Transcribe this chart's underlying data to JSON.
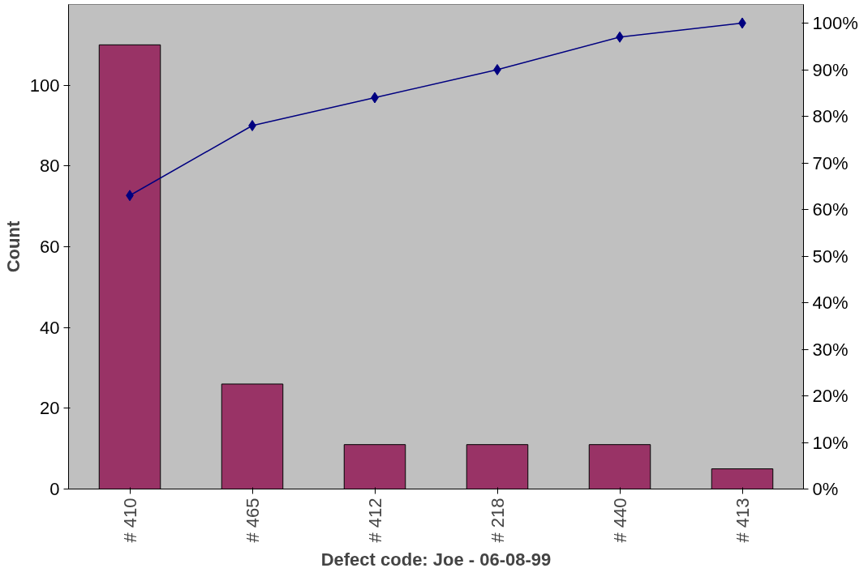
{
  "chart_data": {
    "type": "bar",
    "xlabel": "Defect code: Joe - 06-08-99",
    "ylabel": "Count",
    "categories": [
      "# 410",
      "# 465",
      "# 412",
      "# 218",
      "# 440",
      "# 413"
    ],
    "series": [
      {
        "color": "#993366",
        "values": [
          110,
          26,
          11,
          11,
          11,
          5
        ]
      },
      {
        "type": "line",
        "axis": "y2",
        "color": "#000080",
        "marker": "diamond",
        "values": [
          63,
          78,
          84,
          90,
          97,
          100
        ]
      }
    ],
    "ylim": [
      0,
      120
    ],
    "yticks": [
      0,
      20,
      40,
      60,
      80,
      100
    ],
    "y2lim": [
      0,
      104
    ],
    "y2ticks": [
      {
        "value": 0,
        "label": "0%"
      },
      {
        "value": 10,
        "label": "10%"
      },
      {
        "value": 20,
        "label": "20%"
      },
      {
        "value": 30,
        "label": "30%"
      },
      {
        "value": 40,
        "label": "40%"
      },
      {
        "value": 50,
        "label": "50%"
      },
      {
        "value": 60,
        "label": "60%"
      },
      {
        "value": 70,
        "label": "70%"
      },
      {
        "value": 80,
        "label": "80%"
      },
      {
        "value": 90,
        "label": "90%"
      },
      {
        "value": 100,
        "label": "100%"
      }
    ],
    "grid": false
  }
}
